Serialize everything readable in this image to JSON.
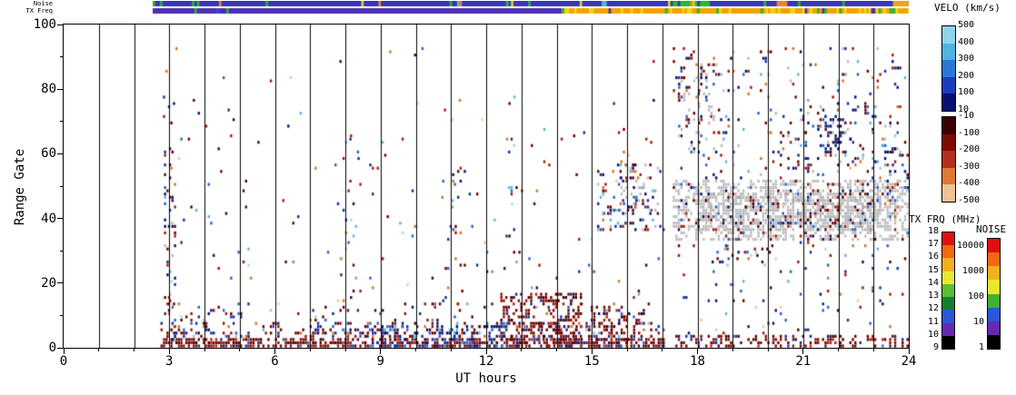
{
  "plot": {
    "xlabel": "UT hours",
    "ylabel": "Range Gate",
    "xlim": [
      0,
      24
    ],
    "ylim": [
      0,
      100
    ],
    "xticks": [
      0,
      3,
      6,
      9,
      12,
      15,
      18,
      21,
      24
    ],
    "yticks": [
      0,
      20,
      40,
      60,
      80,
      100
    ],
    "grid": "hourly vertical black lines"
  },
  "strips": {
    "noise": {
      "label": "Noise",
      "segments": [
        {
          "t0": 2.53,
          "t1": 24.0,
          "color": "#3a35b5",
          "speck_density": 0.09,
          "specks": [
            [
              "#30b030",
              0.3
            ],
            [
              "#e0d020",
              0.2
            ],
            [
              "#e8862a",
              0.2
            ],
            [
              "#cc2010",
              0.1
            ],
            [
              "#58b8dc",
              0.2
            ]
          ]
        },
        {
          "t0": 17.3,
          "t1": 18.35,
          "color": "#28b828",
          "speck_density": 0.15,
          "specks": [
            [
              "#3a35b5",
              0.5
            ],
            [
              "#e0d020",
              0.5
            ]
          ]
        },
        {
          "t0": 20.25,
          "t1": 20.55,
          "color": "#e8862a",
          "speck_density": 0.0,
          "specks": []
        },
        {
          "t0": 23.55,
          "t1": 24.0,
          "color": "#e8a818",
          "speck_density": 0.2,
          "specks": [
            [
              "#cc2010",
              1.0
            ]
          ]
        }
      ]
    },
    "txfreq": {
      "label": "TX Freq",
      "segments": [
        {
          "t0": 2.53,
          "t1": 14.15,
          "color": "#4b2fb0",
          "speck_density": 0.03,
          "specks": [
            [
              "#2858d8",
              0.6
            ],
            [
              "#30b030",
              0.4
            ]
          ]
        },
        {
          "t0": 14.15,
          "t1": 24.0,
          "color": "#f2a300",
          "speck_density": 0.3,
          "specks": [
            [
              "#f0d818",
              0.75
            ],
            [
              "#4b2fb0",
              0.13
            ],
            [
              "#30b030",
              0.12
            ]
          ]
        },
        {
          "t0": 22.9,
          "t1": 23.05,
          "color": "#4b2fb0",
          "speck_density": 0.0,
          "specks": []
        },
        {
          "t0": 23.45,
          "t1": 23.55,
          "color": "#30b030",
          "speck_density": 0.0,
          "specks": []
        }
      ]
    }
  },
  "colorbars": {
    "velo": {
      "title": "VELO (km/s)",
      "upper_labels": [
        "500",
        "400",
        "300",
        "200",
        "100",
        "10"
      ],
      "lower_labels": [
        "-10",
        "-100",
        "-200",
        "-300",
        "-400",
        "-500"
      ],
      "upper_colors": [
        "#8ed4ea",
        "#50b4e0",
        "#2a78d4",
        "#1c3cc0",
        "#081070"
      ],
      "lower_colors": [
        "#3a0000",
        "#7c0a00",
        "#b5301a",
        "#dc7a34",
        "#edc294"
      ]
    },
    "txfrq": {
      "title": "TX FRQ (MHz)",
      "labels": [
        "18",
        "17",
        "16",
        "15",
        "14",
        "13",
        "12",
        "11",
        "10",
        "9"
      ],
      "colors": [
        "#e01010",
        "#f06810",
        "#f0b020",
        "#e8e830",
        "#58c030",
        "#108030",
        "#2858d8",
        "#6828b0",
        "#000000"
      ]
    },
    "noise": {
      "title": "NOISE",
      "labels": [
        "10000",
        "1000",
        "100",
        "10",
        "1"
      ],
      "colors": [
        "#e01010",
        "#f06810",
        "#f0b020",
        "#e8e830",
        "#40b030",
        "#2858d8",
        "#6828b0",
        "#000000"
      ]
    }
  },
  "chart_data": {
    "type": "heatmap",
    "subtype": "superdarn-range-time-scatter",
    "description": "Range-time plot of radar velocity cells. Data coverage from ~02:45 to 24:00 UT with a short gap near 17:05-17:30 UT. Dense negative-velocity (dark red) ground clutter at range gates 0-10 all day; sparse mixed red/blue cells at mid gates; gray ground-scatter band at gates 33-52 from 17:30-24:00 UT and a smaller cluster 15:10-16:55 UT; increased high-gate activity after 17:30 UT.",
    "x_unit": "UT hours",
    "y_unit": "range gate",
    "xlim": [
      0,
      24
    ],
    "ylim": [
      0,
      100
    ],
    "seed": 1337,
    "cols": 340,
    "palettes": {
      "clutterRed": [
        [
          "#6b0000",
          0.4
        ],
        [
          "#8f0f05",
          0.22
        ],
        [
          "#b22015",
          0.12
        ],
        [
          "#3c0000",
          0.1
        ],
        [
          "#16309c",
          0.1
        ],
        [
          "#2a62cc",
          0.06
        ]
      ],
      "clutterMix": [
        [
          "#6b0000",
          0.26
        ],
        [
          "#9c1505",
          0.14
        ],
        [
          "#16309c",
          0.18
        ],
        [
          "#2a62cc",
          0.12
        ],
        [
          "#d8742a",
          0.08
        ],
        [
          "#58b8dc",
          0.08
        ],
        [
          "#0a1468",
          0.08
        ],
        [
          "#bcbcbc",
          0.06
        ]
      ],
      "clutterBlue": [
        [
          "#0a1468",
          0.34
        ],
        [
          "#16309c",
          0.3
        ],
        [
          "#2a62cc",
          0.16
        ],
        [
          "#6b0000",
          0.14
        ],
        [
          "#58b8dc",
          0.06
        ]
      ],
      "sparseMix": [
        [
          "#6b0000",
          0.16
        ],
        [
          "#a81a08",
          0.12
        ],
        [
          "#d8742a",
          0.1
        ],
        [
          "#f0c89c",
          0.05
        ],
        [
          "#16309c",
          0.16
        ],
        [
          "#0a1468",
          0.12
        ],
        [
          "#2a62cc",
          0.12
        ],
        [
          "#58b8dc",
          0.1
        ],
        [
          "#a6dcec",
          0.07
        ]
      ],
      "mixBlueRed": [
        [
          "#0a1468",
          0.2
        ],
        [
          "#16309c",
          0.14
        ],
        [
          "#2a62cc",
          0.1
        ],
        [
          "#6b0000",
          0.18
        ],
        [
          "#a81a08",
          0.1
        ],
        [
          "#bcbcbc",
          0.14
        ],
        [
          "#d8742a",
          0.08
        ],
        [
          "#58b8dc",
          0.06
        ]
      ],
      "grayGS": [
        [
          "#bcbcbc",
          0.84
        ],
        [
          "#6b0000",
          0.05
        ],
        [
          "#0a1468",
          0.05
        ],
        [
          "#2a62cc",
          0.03
        ],
        [
          "#a81a08",
          0.03
        ]
      ],
      "grayMix": [
        [
          "#bcbcbc",
          0.48
        ],
        [
          "#0a1468",
          0.14
        ],
        [
          "#6b0000",
          0.14
        ],
        [
          "#2a62cc",
          0.1
        ],
        [
          "#a81a08",
          0.08
        ],
        [
          "#d8742a",
          0.06
        ]
      ],
      "darkBlue": [
        [
          "#0a1468",
          0.55
        ],
        [
          "#16309c",
          0.25
        ],
        [
          "#6b0000",
          0.1
        ],
        [
          "#2a62cc",
          0.1
        ]
      ]
    },
    "regions": [
      {
        "name": "clutter_day_bottom",
        "t": [
          2.75,
          17.05
        ],
        "g": [
          0,
          3
        ],
        "density": 0.6,
        "palette": "clutterRed"
      },
      {
        "name": "clutter_day_low",
        "t": [
          2.75,
          17.05
        ],
        "g": [
          3,
          8
        ],
        "density": 0.22,
        "palette": "clutterMix"
      },
      {
        "name": "clutter_day_taper",
        "t": [
          2.75,
          17.05
        ],
        "g": [
          8,
          14
        ],
        "density": 0.06,
        "palette": "clutterMix"
      },
      {
        "name": "blob_1330",
        "t": [
          12.4,
          14.7
        ],
        "g": [
          0,
          17
        ],
        "density": 0.3,
        "palette": "clutterRed"
      },
      {
        "name": "blob_1530",
        "t": [
          14.9,
          16.4
        ],
        "g": [
          0,
          13
        ],
        "density": 0.28,
        "palette": "clutterRed"
      },
      {
        "name": "blue_morning",
        "t": [
          8.6,
          12.6
        ],
        "g": [
          0,
          7
        ],
        "density": 0.25,
        "palette": "clutterBlue"
      },
      {
        "name": "col_3",
        "t": [
          2.85,
          3.2
        ],
        "g": [
          2,
          62
        ],
        "density": 0.2,
        "palette": "mixBlueRed"
      },
      {
        "name": "sparse_day",
        "t": [
          2.75,
          17.05
        ],
        "g": [
          8,
          78
        ],
        "density": 0.011,
        "palette": "sparseMix"
      },
      {
        "name": "sparse_day_high",
        "t": [
          2.75,
          17.05
        ],
        "g": [
          78,
          93
        ],
        "density": 0.004,
        "palette": "sparseMix"
      },
      {
        "name": "col_8",
        "t": [
          7.85,
          8.35
        ],
        "g": [
          12,
          68
        ],
        "density": 0.045,
        "palette": "sparseMix"
      },
      {
        "name": "col_11",
        "t": [
          10.75,
          11.25
        ],
        "g": [
          10,
          60
        ],
        "density": 0.04,
        "palette": "sparseMix"
      },
      {
        "name": "col_12_7",
        "t": [
          12.55,
          12.9
        ],
        "g": [
          25,
          65
        ],
        "density": 0.05,
        "palette": "sparseMix"
      },
      {
        "name": "pre_gs_cluster",
        "t": [
          15.15,
          16.95
        ],
        "g": [
          36,
          57
        ],
        "density": 0.16,
        "palette": "mixBlueRed"
      },
      {
        "name": "pre_gs_cluster2",
        "t": [
          15.6,
          16.5
        ],
        "g": [
          42,
          52
        ],
        "density": 0.22,
        "palette": "grayMix"
      },
      {
        "name": "evening_gs_band",
        "t": [
          17.3,
          24
        ],
        "g": [
          33,
          52
        ],
        "density": 0.45,
        "palette": "grayGS"
      },
      {
        "name": "evening_gs_core",
        "t": [
          18.0,
          23.2
        ],
        "g": [
          36,
          48
        ],
        "density": 0.5,
        "palette": "grayGS"
      },
      {
        "name": "evening_high",
        "t": [
          17.3,
          24
        ],
        "g": [
          52,
          93
        ],
        "density": 0.055,
        "palette": "mixBlueRed"
      },
      {
        "name": "evening_cluster18",
        "t": [
          17.45,
          18.7
        ],
        "g": [
          60,
          90
        ],
        "density": 0.14,
        "palette": "grayMix"
      },
      {
        "name": "evening_cluster21",
        "t": [
          20.2,
          23.6
        ],
        "g": [
          55,
          75
        ],
        "density": 0.08,
        "palette": "mixBlueRed"
      },
      {
        "name": "navy_patch",
        "t": [
          21.4,
          22.1
        ],
        "g": [
          60,
          72
        ],
        "density": 0.22,
        "palette": "darkBlue"
      },
      {
        "name": "below_band_red",
        "t": [
          18.4,
          20.1
        ],
        "g": [
          25,
          33
        ],
        "density": 0.1,
        "palette": "mixBlueRed"
      },
      {
        "name": "evening_low_sparse",
        "t": [
          17.3,
          24
        ],
        "g": [
          4,
          33
        ],
        "density": 0.03,
        "palette": "sparseMix"
      },
      {
        "name": "evening_bottom",
        "t": [
          17.3,
          24
        ],
        "g": [
          0,
          4
        ],
        "density": 0.32,
        "palette": "clutterRed"
      },
      {
        "name": "right_edge_blue",
        "t": [
          23.3,
          24
        ],
        "g": [
          40,
          62
        ],
        "density": 0.12,
        "palette": "mixBlueRed"
      }
    ]
  }
}
